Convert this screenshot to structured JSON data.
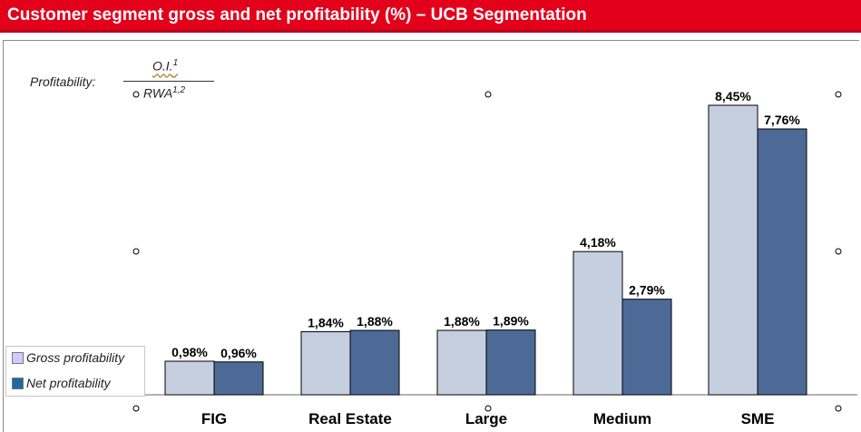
{
  "title": "Customer segment gross and net profitability (%) – UCB Segmentation",
  "formula": {
    "label": "Profitability:",
    "numerator": "O.I.",
    "numerator_sup": "1",
    "denominator": "RWA",
    "denominator_sup": "1,2"
  },
  "legend": {
    "items": [
      {
        "label": "Gross profitability",
        "color": "#ccccff"
      },
      {
        "label": "Net profitability",
        "color": "#1e6aa0"
      }
    ]
  },
  "chart_data": {
    "type": "bar",
    "categories": [
      "FIG",
      "Real Estate",
      "Large",
      "Medium",
      "SME"
    ],
    "series": [
      {
        "name": "Gross profitability",
        "color": "#c5cfe0",
        "values": [
          0.98,
          1.84,
          1.88,
          4.18,
          8.45
        ],
        "labels": [
          "0,98%",
          "1,84%",
          "1,88%",
          "4,18%",
          "8,45%"
        ]
      },
      {
        "name": "Net profitability",
        "color": "#4d6a96",
        "values": [
          0.96,
          1.88,
          1.89,
          2.79,
          7.76
        ],
        "labels": [
          "0,96%",
          "1,88%",
          "1,89%",
          "2,79%",
          "7,76%"
        ]
      }
    ],
    "ylim": [
      0,
      8.45
    ],
    "grid": false,
    "legend_position": "bottom-left"
  }
}
